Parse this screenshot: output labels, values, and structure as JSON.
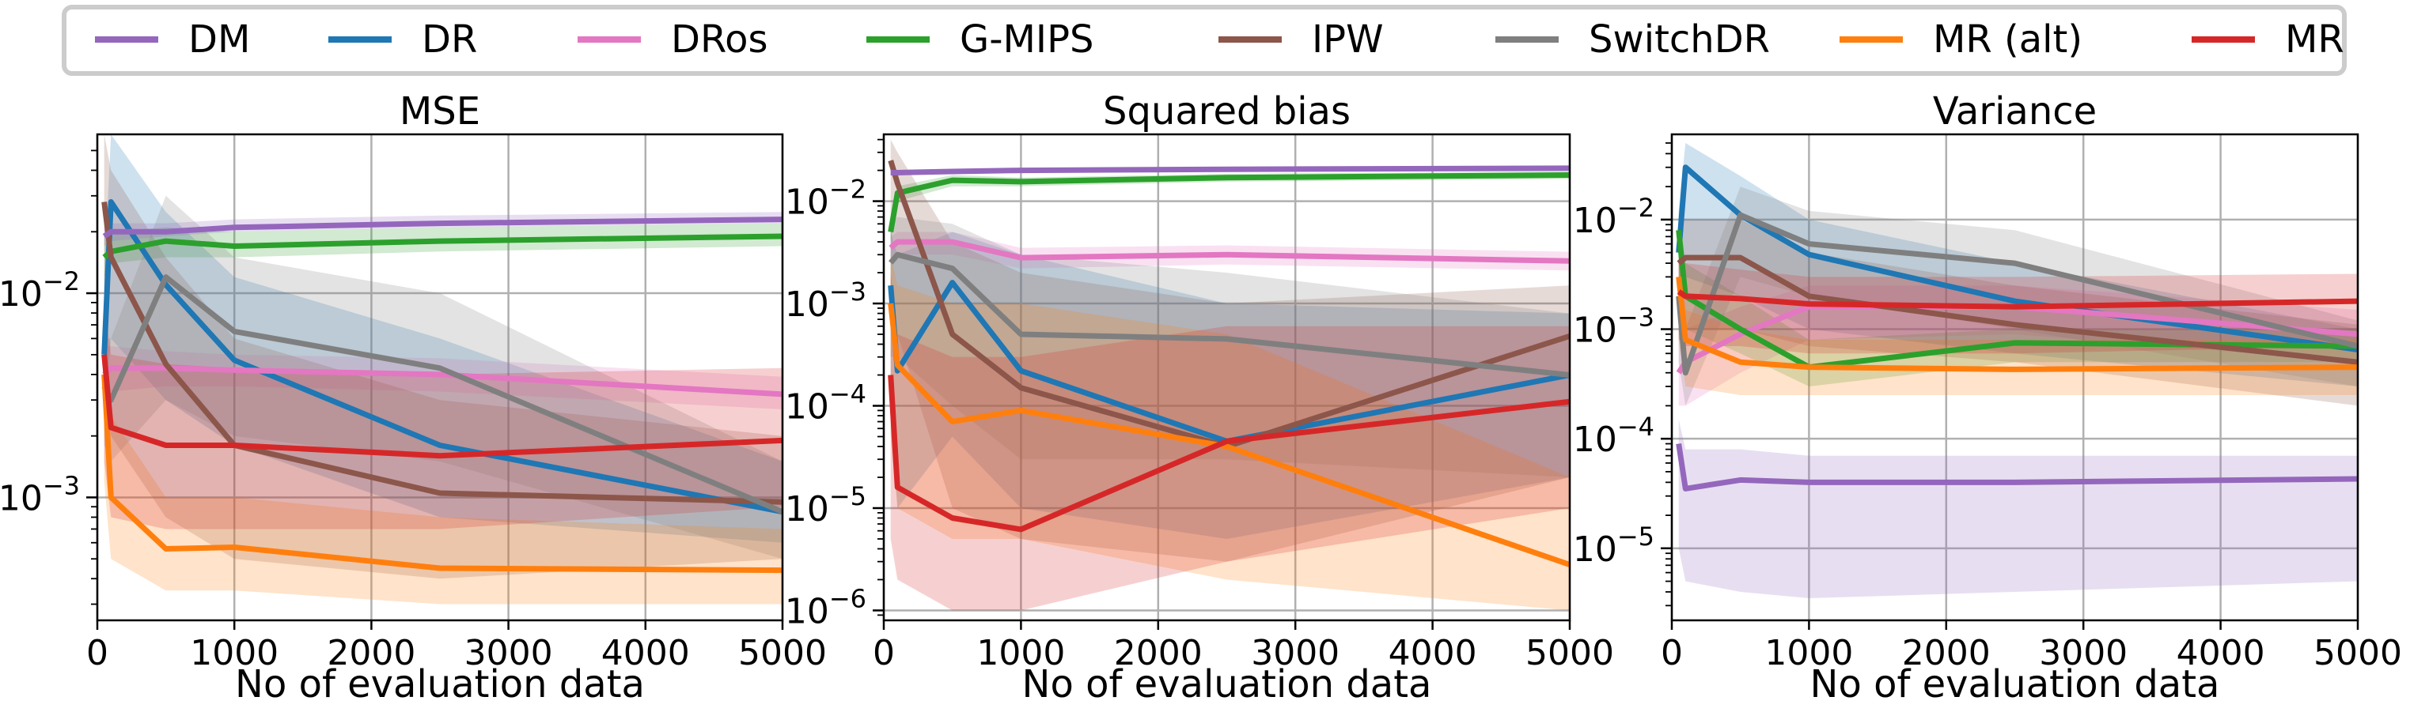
{
  "chart_data": [
    {
      "type": "line",
      "title": "MSE",
      "xlabel": "No of evaluation data",
      "ylabel": "",
      "xlim": [
        0,
        5000
      ],
      "ylim": [
        0.00025,
        0.06
      ],
      "yscale": "log",
      "grid": true,
      "x": [
        50,
        100,
        500,
        1000,
        2500,
        5000
      ],
      "x_ticks": [
        0,
        1000,
        2000,
        3000,
        4000,
        5000
      ],
      "y_ticks": [
        {
          "value": 0.01,
          "label": "10^-2"
        },
        {
          "value": 0.001,
          "label": "10^-3"
        }
      ],
      "series": [
        {
          "name": "DM",
          "values": [
            0.019,
            0.02,
            0.02,
            0.021,
            0.022,
            0.023
          ],
          "lower": [
            0.017,
            0.018,
            0.019,
            0.02,
            0.021,
            0.022
          ],
          "upper": [
            0.021,
            0.022,
            0.022,
            0.023,
            0.024,
            0.025
          ]
        },
        {
          "name": "DR",
          "values": [
            0.005,
            0.028,
            0.011,
            0.0047,
            0.0018,
            0.00085
          ],
          "lower": [
            0.0025,
            0.006,
            0.003,
            0.0018,
            0.0008,
            0.0006
          ],
          "upper": [
            0.012,
            0.06,
            0.025,
            0.012,
            0.006,
            0.0015
          ]
        },
        {
          "name": "DRos",
          "values": [
            0.004,
            0.0043,
            0.0043,
            0.0042,
            0.004,
            0.0032
          ],
          "lower": [
            0.003,
            0.0033,
            0.0035,
            0.0035,
            0.0033,
            0.0027
          ],
          "upper": [
            0.0055,
            0.0055,
            0.0052,
            0.005,
            0.0048,
            0.0039
          ]
        },
        {
          "name": "G-MIPS",
          "values": [
            0.015,
            0.016,
            0.018,
            0.017,
            0.018,
            0.019
          ],
          "lower": [
            0.012,
            0.014,
            0.015,
            0.015,
            0.016,
            0.017
          ],
          "upper": [
            0.019,
            0.02,
            0.021,
            0.02,
            0.021,
            0.022
          ]
        },
        {
          "name": "IPW",
          "values": [
            0.028,
            0.015,
            0.0045,
            0.0018,
            0.00105,
            0.00095
          ],
          "lower": [
            0.004,
            0.002,
            0.0008,
            0.0005,
            0.0004,
            0.0005
          ],
          "upper": [
            0.06,
            0.04,
            0.015,
            0.006,
            0.003,
            0.002
          ]
        },
        {
          "name": "SwitchDR",
          "values": [
            0.0035,
            0.003,
            0.012,
            0.0065,
            0.0043,
            0.00085
          ],
          "lower": [
            0.0018,
            0.0015,
            0.003,
            0.002,
            0.0015,
            0.0005
          ],
          "upper": [
            0.006,
            0.006,
            0.03,
            0.015,
            0.01,
            0.0015
          ]
        },
        {
          "name": "MR (alt)",
          "values": [
            0.004,
            0.001,
            0.00056,
            0.00057,
            0.00045,
            0.00044
          ],
          "lower": [
            0.0012,
            0.0005,
            0.00035,
            0.00035,
            0.0003,
            0.0003
          ],
          "upper": [
            0.008,
            0.0025,
            0.001,
            0.001,
            0.0008,
            0.0007
          ]
        },
        {
          "name": "MR",
          "values": [
            0.005,
            0.0022,
            0.0018,
            0.0018,
            0.0016,
            0.0019
          ],
          "lower": [
            0.0015,
            0.0008,
            0.0007,
            0.0007,
            0.0007,
            0.0009
          ],
          "upper": [
            0.009,
            0.005,
            0.0045,
            0.0043,
            0.004,
            0.0043
          ]
        }
      ]
    },
    {
      "type": "line",
      "title": "Squared bias",
      "xlabel": "No of evaluation data",
      "ylabel": "",
      "xlim": [
        0,
        5000
      ],
      "ylim": [
        8e-07,
        0.045
      ],
      "yscale": "log",
      "grid": true,
      "x": [
        50,
        100,
        500,
        1000,
        2500,
        5000
      ],
      "x_ticks": [
        0,
        1000,
        2000,
        3000,
        4000,
        5000
      ],
      "y_ticks": [
        {
          "value": 0.01,
          "label": "10^-2"
        },
        {
          "value": 0.001,
          "label": "10^-3"
        },
        {
          "value": 0.0001,
          "label": "10^-4"
        },
        {
          "value": 1e-05,
          "label": "10^-5"
        },
        {
          "value": 1e-06,
          "label": "10^-6"
        }
      ],
      "series": [
        {
          "name": "DM",
          "values": [
            0.019,
            0.019,
            0.0195,
            0.02,
            0.0205,
            0.021
          ],
          "lower": [
            0.018,
            0.018,
            0.0185,
            0.019,
            0.0195,
            0.02
          ],
          "upper": [
            0.02,
            0.02,
            0.0205,
            0.021,
            0.0215,
            0.022
          ]
        },
        {
          "name": "DR",
          "values": [
            0.0015,
            0.00022,
            0.0016,
            0.00022,
            4.5e-05,
            0.0002
          ],
          "lower": [
            0.0001,
            1e-05,
            5e-05,
            1e-05,
            5e-06,
            2e-05
          ],
          "upper": [
            0.005,
            0.003,
            0.005,
            0.003,
            0.001,
            0.0008
          ]
        },
        {
          "name": "DRos",
          "values": [
            0.0035,
            0.004,
            0.004,
            0.0028,
            0.003,
            0.0026
          ],
          "lower": [
            0.0028,
            0.003,
            0.003,
            0.0022,
            0.0024,
            0.0021
          ],
          "upper": [
            0.0045,
            0.005,
            0.005,
            0.0035,
            0.0037,
            0.0032
          ]
        },
        {
          "name": "G-MIPS",
          "values": [
            0.005,
            0.012,
            0.016,
            0.0155,
            0.017,
            0.018
          ],
          "lower": [
            0.004,
            0.01,
            0.014,
            0.014,
            0.0155,
            0.0165
          ],
          "upper": [
            0.006,
            0.014,
            0.018,
            0.017,
            0.0185,
            0.0195
          ]
        },
        {
          "name": "IPW",
          "values": [
            0.025,
            0.015,
            0.0005,
            0.00015,
            4e-05,
            0.00048
          ],
          "lower": [
            0.001,
            0.0005,
            1e-05,
            5e-06,
            3e-06,
            2e-05
          ],
          "upper": [
            0.04,
            0.03,
            0.004,
            0.002,
            0.001,
            0.0015
          ]
        },
        {
          "name": "SwitchDR",
          "values": [
            0.0025,
            0.003,
            0.0022,
            0.0005,
            0.00045,
            0.0002
          ],
          "lower": [
            0.0003,
            0.0003,
            0.0001,
            3e-05,
            3e-05,
            2e-05
          ],
          "upper": [
            0.006,
            0.007,
            0.006,
            0.003,
            0.002,
            0.0008
          ]
        },
        {
          "name": "MR (alt)",
          "values": [
            0.001,
            0.00025,
            7e-05,
            9e-05,
            4e-05,
            2.8e-06
          ],
          "lower": [
            5e-05,
            1e-05,
            5e-06,
            5e-06,
            2e-06,
            1e-06
          ],
          "upper": [
            0.003,
            0.0015,
            0.001,
            0.001,
            0.0005,
            2e-05
          ]
        },
        {
          "name": "MR",
          "values": [
            0.0002,
            1.6e-05,
            8e-06,
            6.2e-06,
            4.5e-05,
            0.00011
          ],
          "lower": [
            5e-06,
            2e-06,
            1e-06,
            1e-06,
            3e-06,
            1e-05
          ],
          "upper": [
            0.002,
            0.0005,
            0.0003,
            0.0003,
            0.0006,
            0.0006
          ]
        }
      ]
    },
    {
      "type": "line",
      "title": "Variance",
      "xlabel": "No of evaluation data",
      "ylabel": "",
      "xlim": [
        0,
        5000
      ],
      "ylim": [
        2.2e-06,
        0.06
      ],
      "yscale": "log",
      "grid": true,
      "x": [
        50,
        100,
        500,
        1000,
        2500,
        5000
      ],
      "x_ticks": [
        0,
        1000,
        2000,
        3000,
        4000,
        5000
      ],
      "y_ticks": [
        {
          "value": 0.01,
          "label": "10^-2"
        },
        {
          "value": 0.001,
          "label": "10^-3"
        },
        {
          "value": 0.0001,
          "label": "10^-4"
        },
        {
          "value": 1e-05,
          "label": "10^-5"
        }
      ],
      "series": [
        {
          "name": "DM",
          "values": [
            9e-05,
            3.5e-05,
            4.2e-05,
            4e-05,
            4e-05,
            4.3e-05
          ],
          "lower": [
            1e-05,
            5e-06,
            4e-06,
            3.5e-06,
            4e-06,
            5e-06
          ],
          "upper": [
            0.00015,
            8e-05,
            8e-05,
            7e-05,
            7e-05,
            7e-05
          ]
        },
        {
          "name": "DR",
          "values": [
            0.005,
            0.03,
            0.011,
            0.0048,
            0.0018,
            0.00065
          ],
          "lower": [
            0.001,
            0.003,
            0.002,
            0.001,
            0.0006,
            0.0003
          ],
          "upper": [
            0.012,
            0.05,
            0.025,
            0.01,
            0.004,
            0.001
          ]
        },
        {
          "name": "DRos",
          "values": [
            0.0004,
            0.0005,
            0.0009,
            0.0016,
            0.0016,
            0.0009
          ],
          "lower": [
            0.0002,
            0.0002,
            0.0004,
            0.0008,
            0.0009,
            0.0005
          ],
          "upper": [
            0.0008,
            0.001,
            0.0016,
            0.0025,
            0.0025,
            0.0015
          ]
        },
        {
          "name": "G-MIPS",
          "values": [
            0.008,
            0.002,
            0.001,
            0.00045,
            0.00075,
            0.0007
          ],
          "lower": [
            0.004,
            0.001,
            0.0006,
            0.0003,
            0.0005,
            0.0005
          ],
          "upper": [
            0.012,
            0.004,
            0.002,
            0.0008,
            0.001,
            0.001
          ]
        },
        {
          "name": "IPW",
          "values": [
            0.004,
            0.0045,
            0.0045,
            0.002,
            0.0011,
            0.0005
          ],
          "lower": [
            0.0008,
            0.001,
            0.001,
            0.0007,
            0.0005,
            0.0002
          ],
          "upper": [
            0.01,
            0.01,
            0.01,
            0.005,
            0.0025,
            0.0011
          ]
        },
        {
          "name": "SwitchDR",
          "values": [
            0.002,
            0.0004,
            0.011,
            0.006,
            0.004,
            0.0007
          ],
          "lower": [
            0.0005,
            0.0002,
            0.003,
            0.002,
            0.001,
            0.0003
          ],
          "upper": [
            0.005,
            0.001,
            0.02,
            0.012,
            0.008,
            0.0012
          ]
        },
        {
          "name": "MR (alt)",
          "values": [
            0.003,
            0.0008,
            0.0005,
            0.00045,
            0.00043,
            0.00045
          ],
          "lower": [
            0.0008,
            0.0003,
            0.00025,
            0.00025,
            0.00025,
            0.00025
          ],
          "upper": [
            0.006,
            0.0015,
            0.001,
            0.0008,
            0.0008,
            0.0008
          ]
        },
        {
          "name": "MR",
          "values": [
            0.0022,
            0.002,
            0.0019,
            0.0017,
            0.0016,
            0.0018
          ],
          "lower": [
            0.0008,
            0.0007,
            0.0007,
            0.0006,
            0.0006,
            0.0007
          ],
          "upper": [
            0.004,
            0.004,
            0.0035,
            0.003,
            0.003,
            0.0032
          ]
        }
      ]
    }
  ],
  "legend": {
    "placement": "top",
    "entries": [
      {
        "name": "DM",
        "color": "#9467bd"
      },
      {
        "name": "DR",
        "color": "#1f77b4"
      },
      {
        "name": "DRos",
        "color": "#e377c2"
      },
      {
        "name": "G-MIPS",
        "color": "#2ca02c"
      },
      {
        "name": "IPW",
        "color": "#8c564b"
      },
      {
        "name": "SwitchDR",
        "color": "#7f7f7f"
      },
      {
        "name": "MR (alt)",
        "color": "#ff7f0e"
      },
      {
        "name": "MR",
        "color": "#d62728"
      }
    ]
  }
}
